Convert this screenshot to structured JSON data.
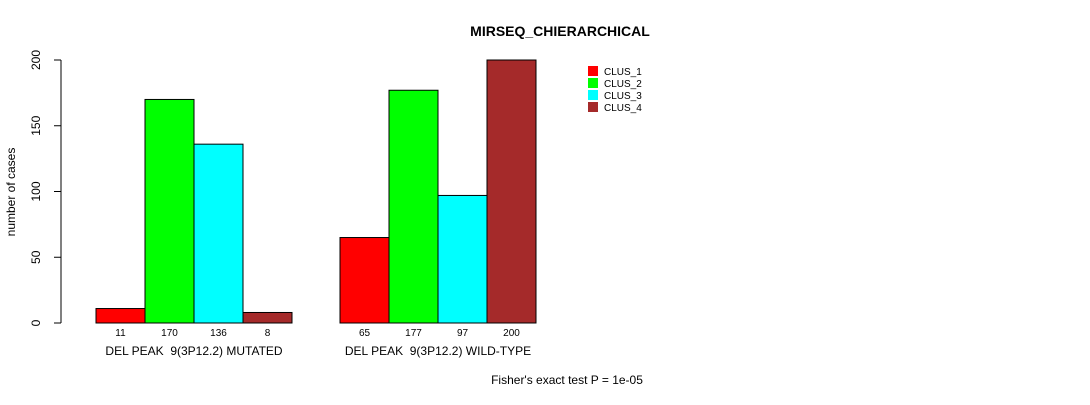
{
  "chart_data": {
    "type": "bar",
    "title": "MIRSEQ_CHIERARCHICAL",
    "ylabel": "number of cases",
    "xlabel": "",
    "ylim": [
      0,
      200
    ],
    "yticks": [
      0,
      50,
      100,
      150,
      200
    ],
    "groups": [
      "DEL PEAK  9(3P12.2) MUTATED",
      "DEL PEAK  9(3P12.2) WILD-TYPE"
    ],
    "series": [
      {
        "name": "CLUS_1",
        "color": "#ff0000",
        "values": [
          11,
          65
        ]
      },
      {
        "name": "CLUS_2",
        "color": "#00ff00",
        "values": [
          170,
          177
        ]
      },
      {
        "name": "CLUS_3",
        "color": "#00ffff",
        "values": [
          136,
          97
        ]
      },
      {
        "name": "CLUS_4",
        "color": "#a52a2a",
        "values": [
          8,
          200
        ]
      }
    ],
    "data_labels": [
      [
        "11",
        "170",
        "136",
        "8"
      ],
      [
        "65",
        "177",
        "97",
        "200"
      ]
    ],
    "legend_position": "top-right",
    "grid": false,
    "footnote": "Fisher's exact test P = 1e-05"
  }
}
